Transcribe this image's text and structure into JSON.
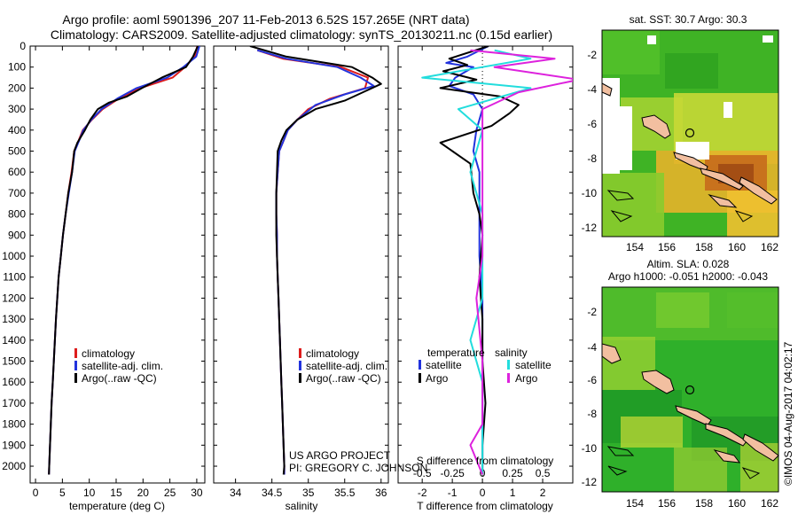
{
  "header": {
    "line1": "Argo profile: aoml 5901396_207 11-Feb-2013 6.52S 157.265E (NRT data)",
    "line2": "Climatology: CARS2009. Satellite-adjusted climatology: synTS_20130211.nc (0.15d earlier)"
  },
  "depth_ticks": [
    "0",
    "100",
    "200",
    "300",
    "400",
    "500",
    "600",
    "700",
    "800",
    "900",
    "1000",
    "1100",
    "1200",
    "1300",
    "1400",
    "1500",
    "1600",
    "1700",
    "1800",
    "1900",
    "2000"
  ],
  "colors": {
    "clim": "#dd1c1c",
    "sat": "#2233dd",
    "argo": "#000000",
    "sal_sat": "#22dddd",
    "sal_argo": "#dd22dd"
  },
  "legend_profile": [
    "climatology",
    "satellite-adj. clim.",
    "Argo(..raw -QC)"
  ],
  "credit": {
    "line1": "US ARGO PROJECT",
    "line2": "PI: GREGORY C. JOHNSON"
  },
  "diff_legend": {
    "temp_title": "temperature",
    "sal_title": "salinity",
    "satellite": "satellite",
    "argo": "Argo"
  },
  "maps": {
    "sst_title": "sat. SST: 30.7  Argo: 30.3",
    "sla_title1": "Altim. SLA: 0.028",
    "sla_title2": "Argo h1000: -0.051  h2000: -0.043",
    "xticks": [
      "154",
      "156",
      "158",
      "160",
      "162"
    ],
    "yticks": [
      "-2",
      "-4",
      "-6",
      "-8",
      "-10",
      "-12"
    ]
  },
  "watermark": "©IMOS 04-Aug-2017 04:02:17",
  "chart_data": [
    {
      "type": "line",
      "title": "temperature",
      "xlabel": "temperature (deg C)",
      "ylabel": "depth",
      "xlim": [
        -1,
        31.5
      ],
      "ylim": [
        2080,
        0
      ],
      "xticks": [
        0,
        5,
        10,
        15,
        20,
        25,
        30
      ],
      "series": [
        {
          "name": "climatology",
          "color": "#dd1c1c",
          "points": [
            [
              30.1,
              0
            ],
            [
              29.6,
              50
            ],
            [
              27.8,
              100
            ],
            [
              25.5,
              150
            ],
            [
              19.5,
              200
            ],
            [
              15.5,
              250
            ],
            [
              12.5,
              300
            ],
            [
              10.5,
              350
            ],
            [
              8.8,
              400
            ],
            [
              8,
              450
            ],
            [
              7.2,
              500
            ],
            [
              6.7,
              600
            ],
            [
              6.1,
              700
            ],
            [
              5.6,
              800
            ],
            [
              5.1,
              900
            ],
            [
              4.7,
              1000
            ],
            [
              4.3,
              1100
            ],
            [
              4.05,
              1200
            ],
            [
              3.8,
              1300
            ],
            [
              3.6,
              1400
            ],
            [
              3.4,
              1500
            ],
            [
              3.2,
              1600
            ],
            [
              3,
              1700
            ],
            [
              2.85,
              1800
            ],
            [
              2.7,
              1900
            ],
            [
              2.55,
              2000
            ],
            [
              2.5,
              2040
            ]
          ]
        },
        {
          "name": "satellite-adj. clim.",
          "color": "#2233dd",
          "points": [
            [
              30.5,
              0
            ],
            [
              29.9,
              50
            ],
            [
              27.5,
              100
            ],
            [
              24.5,
              150
            ],
            [
              18.8,
              200
            ],
            [
              15.2,
              250
            ],
            [
              12.3,
              300
            ],
            [
              10.4,
              350
            ],
            [
              8.9,
              400
            ],
            [
              8.1,
              450
            ],
            [
              7.3,
              500
            ],
            [
              6.8,
              600
            ],
            [
              6.2,
              700
            ],
            [
              5.6,
              800
            ],
            [
              5.1,
              900
            ],
            [
              4.7,
              1000
            ],
            [
              4.3,
              1100
            ],
            [
              4.05,
              1200
            ],
            [
              3.8,
              1300
            ],
            [
              3.6,
              1400
            ],
            [
              3.4,
              1500
            ],
            [
              3.2,
              1600
            ],
            [
              3,
              1700
            ],
            [
              2.85,
              1800
            ],
            [
              2.7,
              1900
            ],
            [
              2.55,
              2000
            ],
            [
              2.5,
              2040
            ]
          ]
        },
        {
          "name": "Argo(..raw -QC)",
          "color": "#000000",
          "points": [
            [
              30.2,
              0
            ],
            [
              29.3,
              50
            ],
            [
              28,
              100
            ],
            [
              23.5,
              150
            ],
            [
              19.8,
              200
            ],
            [
              17,
              240
            ],
            [
              13.6,
              270
            ],
            [
              11.6,
              300
            ],
            [
              10.2,
              350
            ],
            [
              9.2,
              400
            ],
            [
              7.8,
              460
            ],
            [
              7.2,
              500
            ],
            [
              6.8,
              600
            ],
            [
              6.1,
              700
            ],
            [
              5.6,
              800
            ],
            [
              5.1,
              900
            ],
            [
              4.7,
              1000
            ],
            [
              4.3,
              1100
            ],
            [
              4.05,
              1200
            ],
            [
              3.8,
              1300
            ],
            [
              3.6,
              1400
            ],
            [
              3.4,
              1500
            ],
            [
              3.2,
              1600
            ],
            [
              3,
              1700
            ],
            [
              2.85,
              1800
            ],
            [
              2.7,
              1900
            ],
            [
              2.55,
              2000
            ],
            [
              2.5,
              2040
            ]
          ]
        }
      ]
    },
    {
      "type": "line",
      "title": "salinity",
      "xlabel": "salinity",
      "ylabel": "depth",
      "xlim": [
        33.7,
        36.1
      ],
      "ylim": [
        2080,
        0
      ],
      "xticks": [
        34,
        34.5,
        35,
        35.5,
        36
      ],
      "series": [
        {
          "name": "climatology",
          "color": "#dd1c1c",
          "points": [
            [
              34.3,
              20
            ],
            [
              34.65,
              60
            ],
            [
              35.45,
              100
            ],
            [
              35.82,
              150
            ],
            [
              35.78,
              200
            ],
            [
              35.3,
              250
            ],
            [
              35,
              300
            ],
            [
              34.85,
              350
            ],
            [
              34.72,
              400
            ],
            [
              34.66,
              450
            ],
            [
              34.6,
              500
            ],
            [
              34.58,
              600
            ],
            [
              34.56,
              700
            ],
            [
              34.56,
              800
            ],
            [
              34.57,
              900
            ],
            [
              34.57,
              1000
            ],
            [
              34.58,
              1100
            ],
            [
              34.59,
              1200
            ],
            [
              34.6,
              1300
            ],
            [
              34.61,
              1400
            ],
            [
              34.62,
              1500
            ],
            [
              34.63,
              1600
            ],
            [
              34.64,
              1700
            ],
            [
              34.65,
              1800
            ],
            [
              34.66,
              1900
            ],
            [
              34.67,
              2000
            ],
            [
              34.67,
              2040
            ]
          ]
        },
        {
          "name": "satellite-adj. clim.",
          "color": "#2233dd",
          "points": [
            [
              34.3,
              20
            ],
            [
              34.7,
              60
            ],
            [
              35.4,
              100
            ],
            [
              35.72,
              150
            ],
            [
              35.9,
              190
            ],
            [
              35.5,
              230
            ],
            [
              35.1,
              280
            ],
            [
              34.85,
              350
            ],
            [
              34.72,
              400
            ],
            [
              34.66,
              450
            ],
            [
              34.6,
              500
            ],
            [
              34.58,
              600
            ],
            [
              34.56,
              700
            ],
            [
              34.56,
              800
            ],
            [
              34.57,
              900
            ],
            [
              34.57,
              1000
            ],
            [
              34.58,
              1100
            ],
            [
              34.59,
              1200
            ],
            [
              34.6,
              1300
            ],
            [
              34.61,
              1400
            ],
            [
              34.62,
              1500
            ],
            [
              34.63,
              1600
            ],
            [
              34.64,
              1700
            ],
            [
              34.65,
              1800
            ],
            [
              34.66,
              1900
            ],
            [
              34.67,
              2000
            ],
            [
              34.67,
              2040
            ]
          ]
        },
        {
          "name": "Argo(..raw -QC)",
          "color": "#000000",
          "points": [
            [
              34.2,
              0
            ],
            [
              34.7,
              50
            ],
            [
              35.6,
              100
            ],
            [
              35.88,
              150
            ],
            [
              36,
              180
            ],
            [
              35.75,
              220
            ],
            [
              35.5,
              260
            ],
            [
              35.1,
              300
            ],
            [
              34.85,
              350
            ],
            [
              34.7,
              400
            ],
            [
              34.63,
              450
            ],
            [
              34.58,
              500
            ],
            [
              34.57,
              600
            ],
            [
              34.56,
              700
            ],
            [
              34.56,
              800
            ],
            [
              34.56,
              900
            ],
            [
              34.57,
              1000
            ],
            [
              34.58,
              1100
            ],
            [
              34.59,
              1200
            ],
            [
              34.6,
              1300
            ],
            [
              34.61,
              1400
            ],
            [
              34.62,
              1500
            ],
            [
              34.63,
              1600
            ],
            [
              34.64,
              1700
            ],
            [
              34.65,
              1800
            ],
            [
              34.66,
              1900
            ],
            [
              34.67,
              2000
            ],
            [
              34.66,
              2040
            ]
          ]
        }
      ]
    },
    {
      "type": "line",
      "title": "difference from climatology",
      "xlabel": "T difference from climatology",
      "x2label": "S difference from climatology",
      "ylabel": "depth",
      "xlim": [
        -2.8,
        3
      ],
      "ylim": [
        2080,
        0
      ],
      "xticks": [
        -2,
        -1,
        0,
        1,
        2
      ],
      "x2ticks": [
        "-0.5",
        "-0.25",
        "0",
        "0.25",
        "0.5"
      ],
      "series": [
        {
          "name": "temperature satellite",
          "color": "#2233dd",
          "points": [
            [
              0.2,
              0
            ],
            [
              -0.5,
              50
            ],
            [
              -1.2,
              80
            ],
            [
              -0.3,
              100
            ],
            [
              -0.9,
              150
            ],
            [
              -1.1,
              190
            ],
            [
              -0.3,
              230
            ],
            [
              0,
              300
            ],
            [
              -0.2,
              400
            ],
            [
              -0.3,
              500
            ],
            [
              -0.1,
              600
            ],
            [
              -0.1,
              800
            ],
            [
              -0.1,
              1000
            ],
            [
              0,
              1200
            ],
            [
              0,
              1500
            ],
            [
              0,
              2040
            ]
          ]
        },
        {
          "name": "temperature Argo",
          "color": "#000000",
          "points": [
            [
              0.2,
              0
            ],
            [
              -1.1,
              60
            ],
            [
              -0.5,
              90
            ],
            [
              -1.3,
              120
            ],
            [
              -0.2,
              160
            ],
            [
              -1.4,
              200
            ],
            [
              0.6,
              240
            ],
            [
              1.2,
              280
            ],
            [
              0.9,
              320
            ],
            [
              0.3,
              380
            ],
            [
              -1.4,
              460
            ],
            [
              -0.4,
              560
            ],
            [
              -0.3,
              700
            ],
            [
              -0.1,
              800
            ],
            [
              0,
              900
            ],
            [
              -0.1,
              1100
            ],
            [
              0,
              1300
            ],
            [
              0,
              1500
            ],
            [
              0.1,
              1700
            ],
            [
              0,
              1900
            ],
            [
              0,
              2040
            ]
          ]
        },
        {
          "name": "salinity satellite",
          "color": "#22dddd",
          "points": [
            [
              0.1,
              20
            ],
            [
              0.4,
              60
            ],
            [
              -0.5,
              150
            ],
            [
              0.4,
              200
            ],
            [
              -0.2,
              300
            ],
            [
              0,
              400
            ],
            [
              -0.1,
              600
            ],
            [
              0,
              800
            ],
            [
              0,
              1000
            ],
            [
              0,
              1200
            ],
            [
              -0.1,
              1400
            ],
            [
              0,
              1600
            ],
            [
              0,
              2040
            ]
          ]
        },
        {
          "name": "salinity Argo",
          "color": "#dd22dd",
          "points": [
            [
              -0.1,
              20
            ],
            [
              0.6,
              60
            ],
            [
              0.1,
              100
            ],
            [
              0.8,
              160
            ],
            [
              0.3,
              220
            ],
            [
              0,
              300
            ],
            [
              0,
              500
            ],
            [
              0,
              800
            ],
            [
              0,
              1000
            ],
            [
              -0.05,
              1200
            ],
            [
              0,
              1500
            ],
            [
              0,
              1800
            ],
            [
              -0.1,
              1900
            ],
            [
              0,
              2040
            ]
          ]
        }
      ]
    }
  ]
}
